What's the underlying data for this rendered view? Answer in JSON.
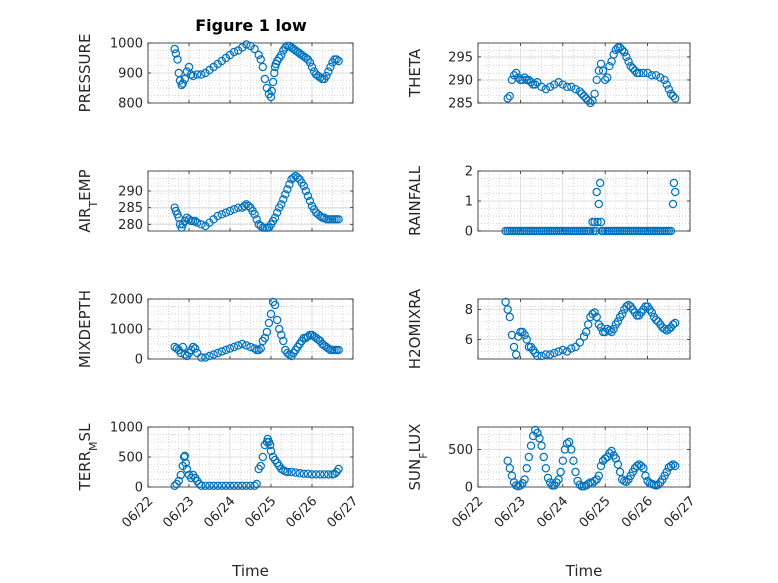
{
  "figure_title": "Figure 1 low",
  "marker_color": "#0072BD",
  "chart_data": [
    {
      "type": "scatter",
      "ylabel": "PRESSURE",
      "xlabel": "",
      "xlim": [
        0,
        5
      ],
      "ylim": [
        800,
        1000
      ],
      "yticks": [
        800,
        900,
        1000
      ],
      "xticks": [
        0,
        1,
        2,
        3,
        4,
        5
      ],
      "xticklabels": [
        "06/22",
        "06/23",
        "06/24",
        "06/25",
        "06/26",
        "06/27"
      ],
      "show_xticklabels": false,
      "title": "Figure 1 low",
      "x": [
        0.65,
        0.68,
        0.72,
        0.75,
        0.78,
        0.82,
        0.85,
        0.9,
        0.95,
        1.0,
        1.05,
        1.1,
        1.2,
        1.3,
        1.4,
        1.5,
        1.6,
        1.7,
        1.8,
        1.9,
        2.0,
        2.1,
        2.2,
        2.3,
        2.4,
        2.5,
        2.6,
        2.7,
        2.75,
        2.8,
        2.85,
        2.9,
        2.95,
        3.0,
        3.02,
        3.05,
        3.08,
        3.1,
        3.12,
        3.15,
        3.2,
        3.25,
        3.3,
        3.35,
        3.4,
        3.45,
        3.5,
        3.55,
        3.6,
        3.65,
        3.7,
        3.75,
        3.8,
        3.85,
        3.9,
        3.95,
        4.0,
        4.05,
        4.1,
        4.15,
        4.2,
        4.25,
        4.3,
        4.35,
        4.4,
        4.45,
        4.5,
        4.55,
        4.6,
        4.65
      ],
      "y": [
        980,
        965,
        945,
        900,
        875,
        860,
        865,
        880,
        905,
        920,
        895,
        890,
        895,
        895,
        900,
        910,
        920,
        930,
        940,
        950,
        960,
        970,
        975,
        985,
        995,
        990,
        980,
        960,
        945,
        920,
        880,
        850,
        830,
        820,
        840,
        870,
        900,
        920,
        930,
        940,
        950,
        960,
        975,
        985,
        990,
        990,
        985,
        980,
        975,
        970,
        965,
        960,
        955,
        950,
        945,
        935,
        920,
        905,
        895,
        890,
        885,
        880,
        880,
        890,
        905,
        920,
        935,
        945,
        945,
        940
      ]
    },
    {
      "type": "scatter",
      "ylabel": "THETA",
      "xlabel": "",
      "xlim": [
        0,
        5
      ],
      "ylim": [
        285,
        298
      ],
      "yticks": [
        285,
        290,
        295
      ],
      "xticks": [
        0,
        1,
        2,
        3,
        4,
        5
      ],
      "xticklabels": [
        "06/22",
        "06/23",
        "06/24",
        "06/25",
        "06/26",
        "06/27"
      ],
      "show_xticklabels": false,
      "x": [
        0.7,
        0.75,
        0.8,
        0.85,
        0.9,
        0.95,
        1.0,
        1.05,
        1.1,
        1.15,
        1.2,
        1.25,
        1.3,
        1.35,
        1.4,
        1.5,
        1.6,
        1.7,
        1.8,
        1.9,
        2.0,
        2.1,
        2.2,
        2.3,
        2.4,
        2.45,
        2.5,
        2.55,
        2.6,
        2.65,
        2.7,
        2.75,
        2.8,
        2.85,
        2.9,
        2.95,
        3.0,
        3.05,
        3.1,
        3.15,
        3.2,
        3.25,
        3.3,
        3.35,
        3.4,
        3.45,
        3.5,
        3.55,
        3.6,
        3.65,
        3.7,
        3.75,
        3.8,
        3.9,
        4.0,
        4.1,
        4.2,
        4.3,
        4.4,
        4.45,
        4.5,
        4.55,
        4.6,
        4.65
      ],
      "y": [
        286,
        286.5,
        290,
        291,
        291.5,
        290.5,
        290,
        290,
        290.5,
        290,
        290,
        289.5,
        289,
        289,
        289.5,
        288.5,
        288,
        288.5,
        289,
        289.5,
        289,
        288.5,
        288.5,
        288,
        287.5,
        287,
        286.5,
        286,
        285.5,
        285,
        285.5,
        287,
        290,
        292,
        293.5,
        292,
        290,
        290.5,
        293,
        294,
        295.5,
        296.5,
        297,
        297,
        296.5,
        296,
        295,
        294,
        293,
        292.5,
        292,
        291.5,
        291.5,
        291.5,
        291.5,
        291,
        291,
        290.5,
        290,
        289,
        288,
        287,
        286.5,
        286
      ]
    },
    {
      "type": "scatter",
      "ylabel": "AIR_TEMP",
      "xlabel": "",
      "xlim": [
        0,
        5
      ],
      "ylim": [
        278,
        296
      ],
      "yticks": [
        280,
        285,
        290
      ],
      "xticks": [
        0,
        1,
        2,
        3,
        4,
        5
      ],
      "xticklabels": [
        "06/22",
        "06/23",
        "06/24",
        "06/25",
        "06/26",
        "06/27"
      ],
      "show_xticklabels": false,
      "x": [
        0.65,
        0.68,
        0.72,
        0.75,
        0.78,
        0.82,
        0.85,
        0.9,
        0.95,
        1.0,
        1.05,
        1.1,
        1.15,
        1.2,
        1.3,
        1.4,
        1.5,
        1.6,
        1.7,
        1.8,
        1.9,
        2.0,
        2.1,
        2.2,
        2.3,
        2.35,
        2.4,
        2.45,
        2.5,
        2.55,
        2.6,
        2.65,
        2.7,
        2.75,
        2.8,
        2.85,
        2.9,
        2.95,
        3.0,
        3.05,
        3.1,
        3.15,
        3.2,
        3.25,
        3.3,
        3.35,
        3.4,
        3.45,
        3.5,
        3.55,
        3.6,
        3.65,
        3.7,
        3.75,
        3.8,
        3.85,
        3.9,
        3.95,
        4.0,
        4.05,
        4.1,
        4.15,
        4.2,
        4.25,
        4.3,
        4.35,
        4.4,
        4.45,
        4.5,
        4.55,
        4.6,
        4.65
      ],
      "y": [
        285,
        284,
        283,
        282,
        280,
        279,
        280,
        281,
        282,
        281.5,
        281,
        281,
        281,
        280.5,
        280,
        279.5,
        280.5,
        281.5,
        282.5,
        283,
        283.5,
        284,
        284.5,
        285,
        285,
        285.5,
        286,
        285.5,
        285,
        284,
        283,
        281.5,
        280,
        279.5,
        279,
        279,
        279,
        279,
        280,
        281,
        282,
        283.5,
        285,
        286,
        287.5,
        289,
        290.5,
        292,
        293.5,
        294,
        294.5,
        294,
        293.5,
        292.5,
        291.5,
        290,
        288.5,
        287,
        285.5,
        284.5,
        283.5,
        283,
        282.5,
        282,
        282,
        281.5,
        281.5,
        281.5,
        281.5,
        281.5,
        281.5,
        281.5
      ]
    },
    {
      "type": "scatter",
      "ylabel": "RAINFALL",
      "xlabel": "",
      "xlim": [
        0,
        5
      ],
      "ylim": [
        0,
        2
      ],
      "yticks": [
        0,
        1,
        2
      ],
      "xticks": [
        0,
        1,
        2,
        3,
        4,
        5
      ],
      "xticklabels": [
        "06/22",
        "06/23",
        "06/24",
        "06/25",
        "06/26",
        "06/27"
      ],
      "show_xticklabels": false,
      "x": [
        0.65,
        0.7,
        0.75,
        0.8,
        0.85,
        0.9,
        0.95,
        1.0,
        1.05,
        1.1,
        1.15,
        1.2,
        1.25,
        1.3,
        1.35,
        1.4,
        1.45,
        1.5,
        1.55,
        1.6,
        1.65,
        1.7,
        1.75,
        1.8,
        1.85,
        1.9,
        1.95,
        2.0,
        2.05,
        2.1,
        2.15,
        2.2,
        2.25,
        2.3,
        2.35,
        2.4,
        2.45,
        2.5,
        2.55,
        2.6,
        2.65,
        2.7,
        2.72,
        2.75,
        2.78,
        2.8,
        2.82,
        2.85,
        2.88,
        2.9,
        2.92,
        2.95,
        3.0,
        3.05,
        3.1,
        3.15,
        3.2,
        3.25,
        3.3,
        3.35,
        3.4,
        3.45,
        3.5,
        3.55,
        3.6,
        3.65,
        3.7,
        3.75,
        3.8,
        3.85,
        3.9,
        3.95,
        4.0,
        4.05,
        4.1,
        4.15,
        4.2,
        4.25,
        4.3,
        4.35,
        4.4,
        4.45,
        4.5,
        4.55,
        4.6,
        4.62,
        4.65
      ],
      "y": [
        0,
        0,
        0,
        0,
        0,
        0,
        0,
        0,
        0,
        0,
        0,
        0,
        0,
        0,
        0,
        0,
        0,
        0,
        0,
        0,
        0,
        0,
        0,
        0,
        0,
        0,
        0,
        0,
        0,
        0,
        0,
        0,
        0,
        0,
        0,
        0,
        0,
        0,
        0,
        0,
        0,
        0.3,
        0,
        0.3,
        0,
        1.3,
        0.3,
        0.9,
        1.6,
        0.3,
        0,
        0,
        0,
        0,
        0,
        0,
        0,
        0,
        0,
        0,
        0,
        0,
        0,
        0,
        0,
        0,
        0,
        0,
        0,
        0,
        0,
        0,
        0,
        0,
        0,
        0,
        0,
        0,
        0,
        0,
        0,
        0,
        0,
        0,
        0.9,
        1.6,
        1.3
      ]
    },
    {
      "type": "scatter",
      "ylabel": "MIXDEPTH",
      "xlabel": "",
      "xlim": [
        0,
        5
      ],
      "ylim": [
        0,
        2000
      ],
      "yticks": [
        0,
        1000,
        2000
      ],
      "xticks": [
        0,
        1,
        2,
        3,
        4,
        5
      ],
      "xticklabels": [
        "06/22",
        "06/23",
        "06/24",
        "06/25",
        "06/26",
        "06/27"
      ],
      "show_xticklabels": false,
      "x": [
        0.65,
        0.7,
        0.75,
        0.8,
        0.85,
        0.9,
        0.95,
        1.0,
        1.05,
        1.1,
        1.15,
        1.2,
        1.3,
        1.4,
        1.5,
        1.6,
        1.7,
        1.8,
        1.9,
        2.0,
        2.1,
        2.2,
        2.3,
        2.4,
        2.5,
        2.6,
        2.65,
        2.7,
        2.75,
        2.8,
        2.85,
        2.9,
        2.95,
        3.0,
        3.05,
        3.1,
        3.15,
        3.2,
        3.25,
        3.3,
        3.35,
        3.4,
        3.45,
        3.5,
        3.55,
        3.6,
        3.65,
        3.7,
        3.75,
        3.8,
        3.85,
        3.9,
        3.95,
        4.0,
        4.05,
        4.1,
        4.15,
        4.2,
        4.25,
        4.3,
        4.35,
        4.4,
        4.45,
        4.5,
        4.55,
        4.6,
        4.65
      ],
      "y": [
        400,
        350,
        300,
        200,
        400,
        150,
        100,
        200,
        300,
        400,
        350,
        200,
        50,
        50,
        100,
        150,
        200,
        250,
        300,
        350,
        400,
        450,
        500,
        450,
        400,
        350,
        300,
        300,
        350,
        600,
        700,
        900,
        1200,
        1500,
        1900,
        1800,
        1300,
        1000,
        800,
        600,
        300,
        200,
        150,
        100,
        200,
        300,
        400,
        500,
        600,
        700,
        700,
        750,
        800,
        800,
        750,
        700,
        650,
        600,
        500,
        450,
        400,
        350,
        300,
        300,
        300,
        300,
        300
      ]
    },
    {
      "type": "scatter",
      "ylabel": "H2OMIXRA",
      "xlabel": "",
      "xlim": [
        0,
        5
      ],
      "ylim": [
        4.7,
        8.7
      ],
      "yticks": [
        6,
        8
      ],
      "xticks": [
        0,
        1,
        2,
        3,
        4,
        5
      ],
      "xticklabels": [
        "06/22",
        "06/23",
        "06/24",
        "06/25",
        "06/26",
        "06/27"
      ],
      "show_xticklabels": false,
      "x": [
        0.65,
        0.7,
        0.75,
        0.8,
        0.85,
        0.9,
        0.95,
        1.0,
        1.05,
        1.1,
        1.15,
        1.2,
        1.25,
        1.3,
        1.35,
        1.4,
        1.5,
        1.6,
        1.7,
        1.8,
        1.9,
        2.0,
        2.1,
        2.2,
        2.3,
        2.4,
        2.5,
        2.55,
        2.6,
        2.65,
        2.7,
        2.75,
        2.8,
        2.85,
        2.9,
        2.95,
        3.0,
        3.05,
        3.1,
        3.15,
        3.2,
        3.25,
        3.3,
        3.35,
        3.4,
        3.45,
        3.5,
        3.55,
        3.6,
        3.65,
        3.7,
        3.75,
        3.8,
        3.85,
        3.9,
        3.95,
        4.0,
        4.05,
        4.1,
        4.15,
        4.2,
        4.25,
        4.3,
        4.35,
        4.4,
        4.45,
        4.5,
        4.55,
        4.6,
        4.65
      ],
      "y": [
        8.5,
        8.0,
        7.5,
        6.3,
        5.5,
        5.0,
        6.2,
        6.5,
        6.5,
        6.3,
        6.0,
        5.5,
        5.5,
        5.3,
        5.1,
        4.9,
        4.9,
        5.0,
        5.0,
        5.1,
        5.2,
        5.3,
        5.2,
        5.4,
        5.5,
        5.8,
        6.2,
        6.5,
        7.0,
        7.5,
        7.7,
        7.8,
        7.5,
        7.0,
        6.8,
        6.5,
        6.5,
        6.7,
        6.6,
        6.5,
        6.7,
        7.0,
        7.2,
        7.5,
        7.7,
        8.0,
        8.2,
        8.3,
        8.2,
        8.0,
        7.8,
        7.6,
        7.6,
        7.8,
        8.0,
        8.2,
        8.2,
        8.0,
        7.8,
        7.5,
        7.3,
        7.2,
        7.0,
        6.8,
        6.7,
        6.6,
        6.7,
        6.8,
        7.0,
        7.1
      ]
    },
    {
      "type": "scatter",
      "ylabel": "TERR_MSL",
      "xlabel": "Time",
      "xlim": [
        0,
        5
      ],
      "ylim": [
        0,
        1000
      ],
      "yticks": [
        0,
        500,
        1000
      ],
      "xticks": [
        0,
        1,
        2,
        3,
        4,
        5
      ],
      "xticklabels": [
        "06/22",
        "06/23",
        "06/24",
        "06/25",
        "06/26",
        "06/27"
      ],
      "show_xticklabels": true,
      "x": [
        0.65,
        0.7,
        0.75,
        0.8,
        0.85,
        0.88,
        0.9,
        0.92,
        0.95,
        1.0,
        1.05,
        1.1,
        1.15,
        1.2,
        1.25,
        1.3,
        1.4,
        1.5,
        1.6,
        1.7,
        1.8,
        1.9,
        2.0,
        2.1,
        2.2,
        2.3,
        2.4,
        2.5,
        2.6,
        2.65,
        2.7,
        2.75,
        2.8,
        2.85,
        2.9,
        2.92,
        2.95,
        2.98,
        3.0,
        3.05,
        3.1,
        3.15,
        3.2,
        3.25,
        3.3,
        3.35,
        3.4,
        3.5,
        3.6,
        3.7,
        3.8,
        3.9,
        4.0,
        4.1,
        4.2,
        4.3,
        4.4,
        4.5,
        4.55,
        4.6,
        4.65
      ],
      "y": [
        20,
        50,
        100,
        200,
        350,
        500,
        520,
        400,
        300,
        200,
        150,
        200,
        150,
        100,
        50,
        20,
        20,
        20,
        20,
        20,
        20,
        20,
        20,
        20,
        20,
        20,
        20,
        20,
        20,
        50,
        300,
        350,
        500,
        700,
        750,
        800,
        750,
        700,
        600,
        500,
        450,
        400,
        350,
        300,
        280,
        260,
        250,
        250,
        240,
        230,
        220,
        220,
        210,
        210,
        210,
        210,
        210,
        210,
        220,
        250,
        300
      ]
    },
    {
      "type": "scatter",
      "ylabel": "SUN_FLUX",
      "xlabel": "Time",
      "xlim": [
        0,
        5
      ],
      "ylim": [
        0,
        800
      ],
      "yticks": [
        0,
        500
      ],
      "xticks": [
        0,
        1,
        2,
        3,
        4,
        5
      ],
      "xticklabels": [
        "06/22",
        "06/23",
        "06/24",
        "06/25",
        "06/26",
        "06/27"
      ],
      "show_xticklabels": true,
      "x": [
        0.7,
        0.75,
        0.8,
        0.85,
        0.9,
        0.95,
        1.0,
        1.05,
        1.1,
        1.15,
        1.2,
        1.25,
        1.3,
        1.35,
        1.4,
        1.45,
        1.5,
        1.55,
        1.6,
        1.65,
        1.7,
        1.75,
        1.8,
        1.85,
        1.9,
        1.95,
        2.0,
        2.05,
        2.1,
        2.15,
        2.2,
        2.25,
        2.3,
        2.35,
        2.4,
        2.45,
        2.5,
        2.55,
        2.6,
        2.65,
        2.7,
        2.75,
        2.8,
        2.85,
        2.9,
        2.95,
        3.0,
        3.05,
        3.1,
        3.15,
        3.2,
        3.25,
        3.3,
        3.35,
        3.4,
        3.45,
        3.5,
        3.55,
        3.6,
        3.65,
        3.7,
        3.75,
        3.8,
        3.85,
        3.9,
        3.95,
        4.0,
        4.05,
        4.1,
        4.15,
        4.2,
        4.25,
        4.3,
        4.35,
        4.4,
        4.45,
        4.5,
        4.55,
        4.6,
        4.65
      ],
      "y": [
        350,
        250,
        150,
        60,
        20,
        10,
        20,
        50,
        100,
        250,
        400,
        550,
        680,
        760,
        720,
        650,
        550,
        400,
        250,
        120,
        60,
        20,
        20,
        60,
        100,
        200,
        350,
        500,
        580,
        600,
        500,
        350,
        200,
        80,
        30,
        10,
        10,
        20,
        40,
        60,
        50,
        80,
        100,
        150,
        280,
        350,
        380,
        400,
        450,
        480,
        420,
        380,
        300,
        200,
        100,
        80,
        70,
        100,
        150,
        200,
        250,
        280,
        300,
        280,
        250,
        150,
        80,
        50,
        40,
        30,
        20,
        30,
        60,
        100,
        150,
        200,
        260,
        280,
        300,
        280
      ]
    }
  ]
}
